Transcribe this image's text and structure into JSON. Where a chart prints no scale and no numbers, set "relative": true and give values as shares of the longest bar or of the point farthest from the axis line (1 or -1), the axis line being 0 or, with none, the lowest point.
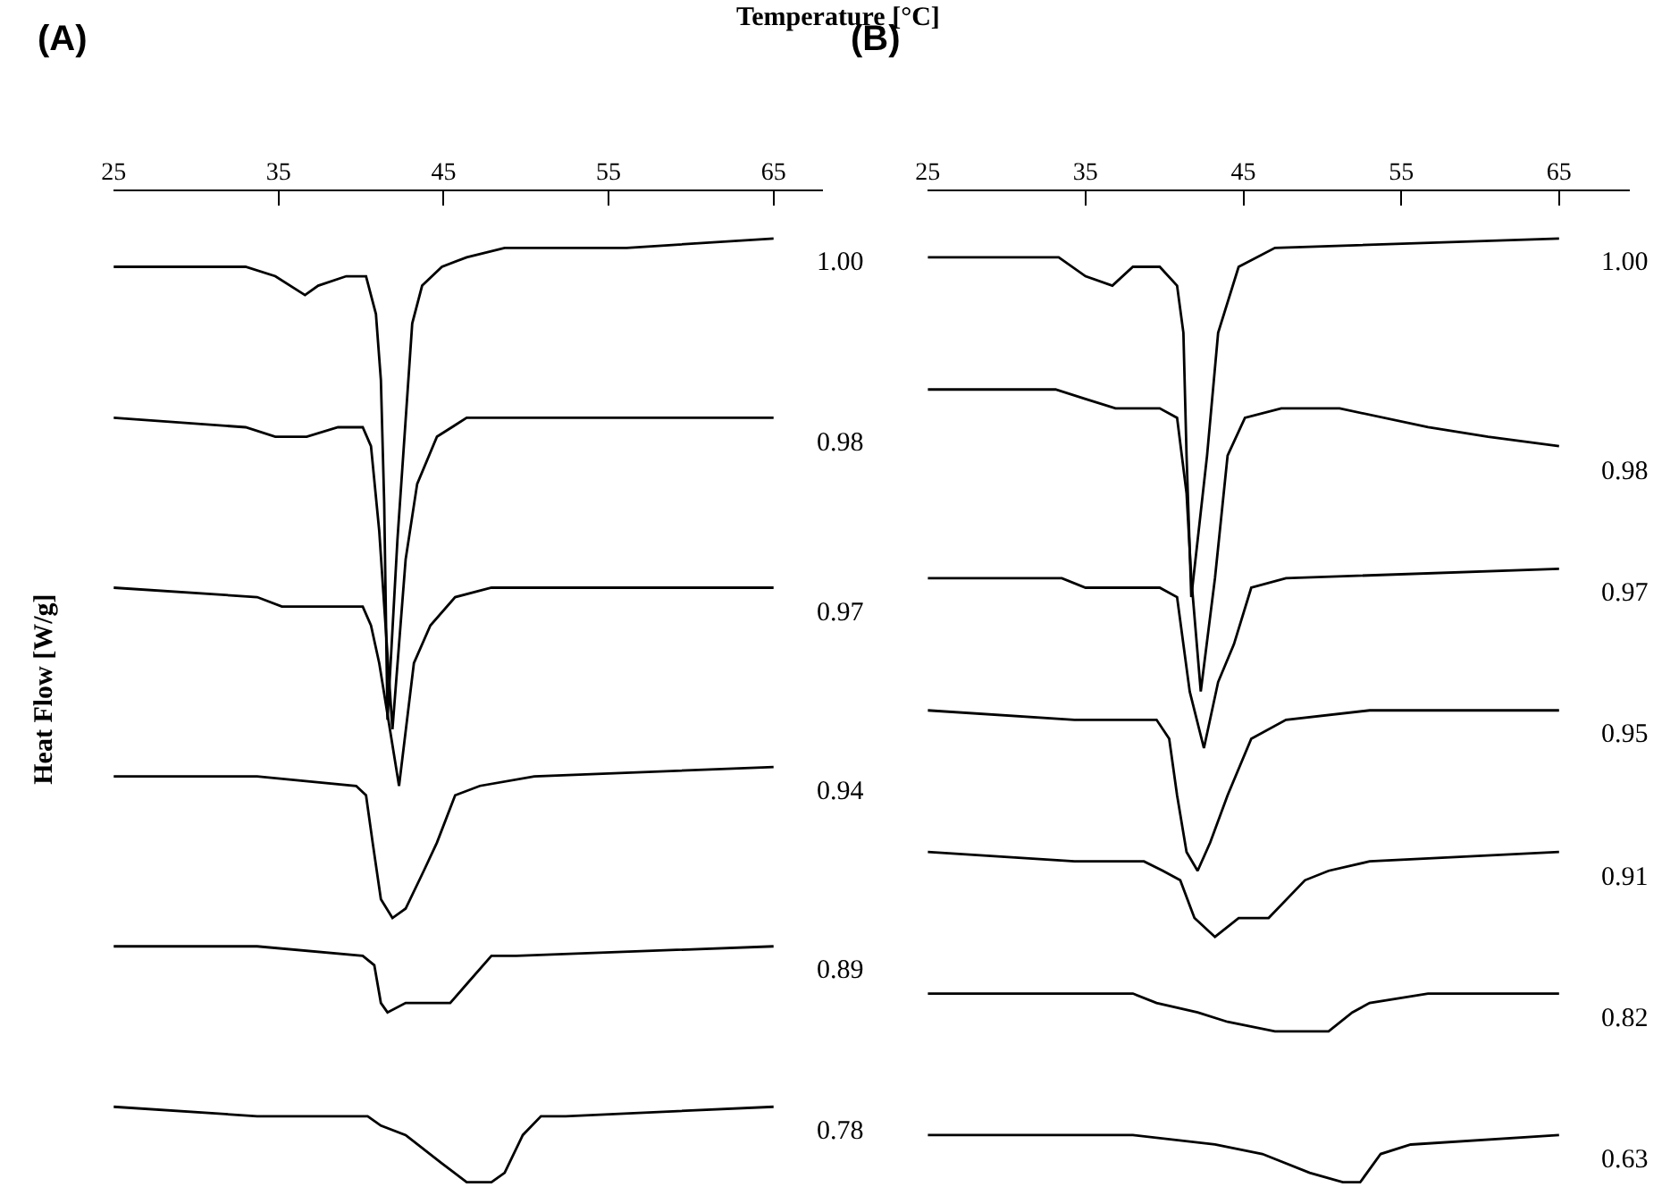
{
  "chart_data": [
    {
      "type": "line",
      "title": "(A)",
      "xlabel": "Temperature [°C]",
      "ylabel": "Heat Flow [W/g]",
      "relative": true,
      "legend": false,
      "xlim": [
        25,
        68
      ],
      "xticks": [
        25,
        35,
        45,
        55,
        65
      ],
      "series": [
        {
          "name": "1.00",
          "color": "#000000",
          "x": [
            25,
            33,
            34.8,
            36.6,
            37.4,
            39.1,
            40.3,
            40.9,
            41.2,
            41.4,
            41.6,
            42.2,
            43.1,
            43.7,
            44.9,
            46.4,
            48.7,
            56.1,
            65
          ],
          "values": [
            0.97,
            0.97,
            0.96,
            0.94,
            0.95,
            0.96,
            0.96,
            0.92,
            0.85,
            0.72,
            0.49,
            0.68,
            0.91,
            0.95,
            0.97,
            0.98,
            0.99,
            0.99,
            1.0
          ]
        },
        {
          "name": "0.98",
          "color": "#000000",
          "x": [
            25,
            33,
            34.8,
            36.7,
            38.6,
            40.1,
            40.6,
            41.1,
            41.9,
            42.7,
            43.4,
            44.6,
            46.4,
            65
          ],
          "values": [
            0.81,
            0.8,
            0.79,
            0.79,
            0.8,
            0.8,
            0.78,
            0.69,
            0.48,
            0.66,
            0.74,
            0.79,
            0.81,
            0.81
          ]
        },
        {
          "name": "0.97",
          "color": "#000000",
          "x": [
            25,
            33.7,
            35.2,
            40.1,
            40.6,
            41.1,
            42.3,
            43.2,
            44.2,
            45.7,
            47.9,
            65
          ],
          "values": [
            0.63,
            0.62,
            0.61,
            0.61,
            0.59,
            0.55,
            0.42,
            0.55,
            0.59,
            0.62,
            0.63,
            0.63
          ]
        },
        {
          "name": "0.94",
          "color": "#000000",
          "x": [
            25,
            33.7,
            39.7,
            40.3,
            40.7,
            41.2,
            41.9,
            42.7,
            43.8,
            44.6,
            45.7,
            47.2,
            50.5,
            65
          ],
          "values": [
            0.43,
            0.43,
            0.42,
            0.41,
            0.36,
            0.3,
            0.28,
            0.29,
            0.33,
            0.36,
            0.41,
            0.42,
            0.43,
            0.44
          ]
        },
        {
          "name": "0.89",
          "color": "#000000",
          "x": [
            25,
            33.7,
            40.1,
            40.8,
            41.2,
            41.6,
            42.7,
            44.6,
            45.4,
            46.4,
            47.9,
            49.4,
            65
          ],
          "values": [
            0.25,
            0.25,
            0.24,
            0.23,
            0.19,
            0.18,
            0.19,
            0.19,
            0.19,
            0.21,
            0.24,
            0.24,
            0.25
          ]
        },
        {
          "name": "0.78",
          "color": "#000000",
          "x": [
            25,
            33.7,
            40.4,
            41.2,
            42.7,
            44.9,
            46.4,
            47.9,
            48.7,
            49.8,
            50.9,
            52.4,
            65
          ],
          "values": [
            0.08,
            0.07,
            0.07,
            0.06,
            0.05,
            0.02,
            0.0,
            0.0,
            0.01,
            0.05,
            0.07,
            0.07,
            0.08
          ]
        }
      ]
    },
    {
      "type": "line",
      "title": "(B)",
      "relative": true,
      "legend": false,
      "xlim": [
        25,
        69.5
      ],
      "xticks": [
        25,
        35,
        45,
        55,
        65
      ],
      "series": [
        {
          "name": "1.00",
          "color": "#000000",
          "x": [
            25,
            33.3,
            35,
            36.7,
            38,
            39.7,
            40.8,
            41.2,
            41.4,
            41.7,
            42.7,
            43.4,
            44.7,
            47,
            65
          ],
          "values": [
            0.98,
            0.98,
            0.96,
            0.95,
            0.97,
            0.97,
            0.95,
            0.9,
            0.77,
            0.62,
            0.77,
            0.9,
            0.97,
            0.99,
            1.0
          ]
        },
        {
          "name": "0.98",
          "color": "#000000",
          "x": [
            25,
            33.1,
            35,
            36.9,
            39.7,
            40.8,
            41.4,
            41.7,
            42.3,
            43.2,
            44,
            45.1,
            47.4,
            51.1,
            56.7,
            60.5,
            65
          ],
          "values": [
            0.84,
            0.84,
            0.83,
            0.82,
            0.82,
            0.81,
            0.73,
            0.64,
            0.52,
            0.64,
            0.77,
            0.81,
            0.82,
            0.82,
            0.8,
            0.79,
            0.78
          ]
        },
        {
          "name": "0.97",
          "color": "#000000",
          "x": [
            25,
            33.5,
            35,
            39.7,
            40.8,
            41.6,
            42.5,
            43.4,
            44.4,
            45.5,
            47.7,
            65
          ],
          "values": [
            0.64,
            0.64,
            0.63,
            0.63,
            0.62,
            0.52,
            0.46,
            0.53,
            0.57,
            0.63,
            0.64,
            0.65
          ]
        },
        {
          "name": "0.95",
          "color": "#000000",
          "x": [
            25,
            34.3,
            39.5,
            40.3,
            40.8,
            41.4,
            42.1,
            42.9,
            44,
            45.5,
            47.7,
            53,
            65
          ],
          "values": [
            0.5,
            0.49,
            0.49,
            0.47,
            0.41,
            0.35,
            0.33,
            0.36,
            0.41,
            0.47,
            0.49,
            0.5,
            0.5
          ]
        },
        {
          "name": "0.91",
          "color": "#000000",
          "x": [
            25,
            34.3,
            38.7,
            39.9,
            41,
            41.9,
            43.2,
            44.7,
            46.6,
            48.9,
            50.4,
            53,
            65
          ],
          "values": [
            0.35,
            0.34,
            0.34,
            0.33,
            0.32,
            0.28,
            0.26,
            0.28,
            0.28,
            0.32,
            0.33,
            0.34,
            0.35
          ]
        },
        {
          "name": "0.82",
          "color": "#000000",
          "x": [
            25,
            38,
            39.5,
            42.1,
            44,
            47,
            49.2,
            50.4,
            51.9,
            53,
            56.7,
            65
          ],
          "values": [
            0.2,
            0.2,
            0.19,
            0.18,
            0.17,
            0.16,
            0.16,
            0.16,
            0.18,
            0.19,
            0.2,
            0.2
          ]
        },
        {
          "name": "0.63",
          "color": "#000000",
          "x": [
            25,
            38,
            43.2,
            46.2,
            49.2,
            51.3,
            52.4,
            53.7,
            55.6,
            65
          ],
          "values": [
            0.05,
            0.05,
            0.04,
            0.03,
            0.01,
            0.0,
            0.0,
            0.03,
            0.04,
            0.05
          ]
        }
      ]
    }
  ]
}
